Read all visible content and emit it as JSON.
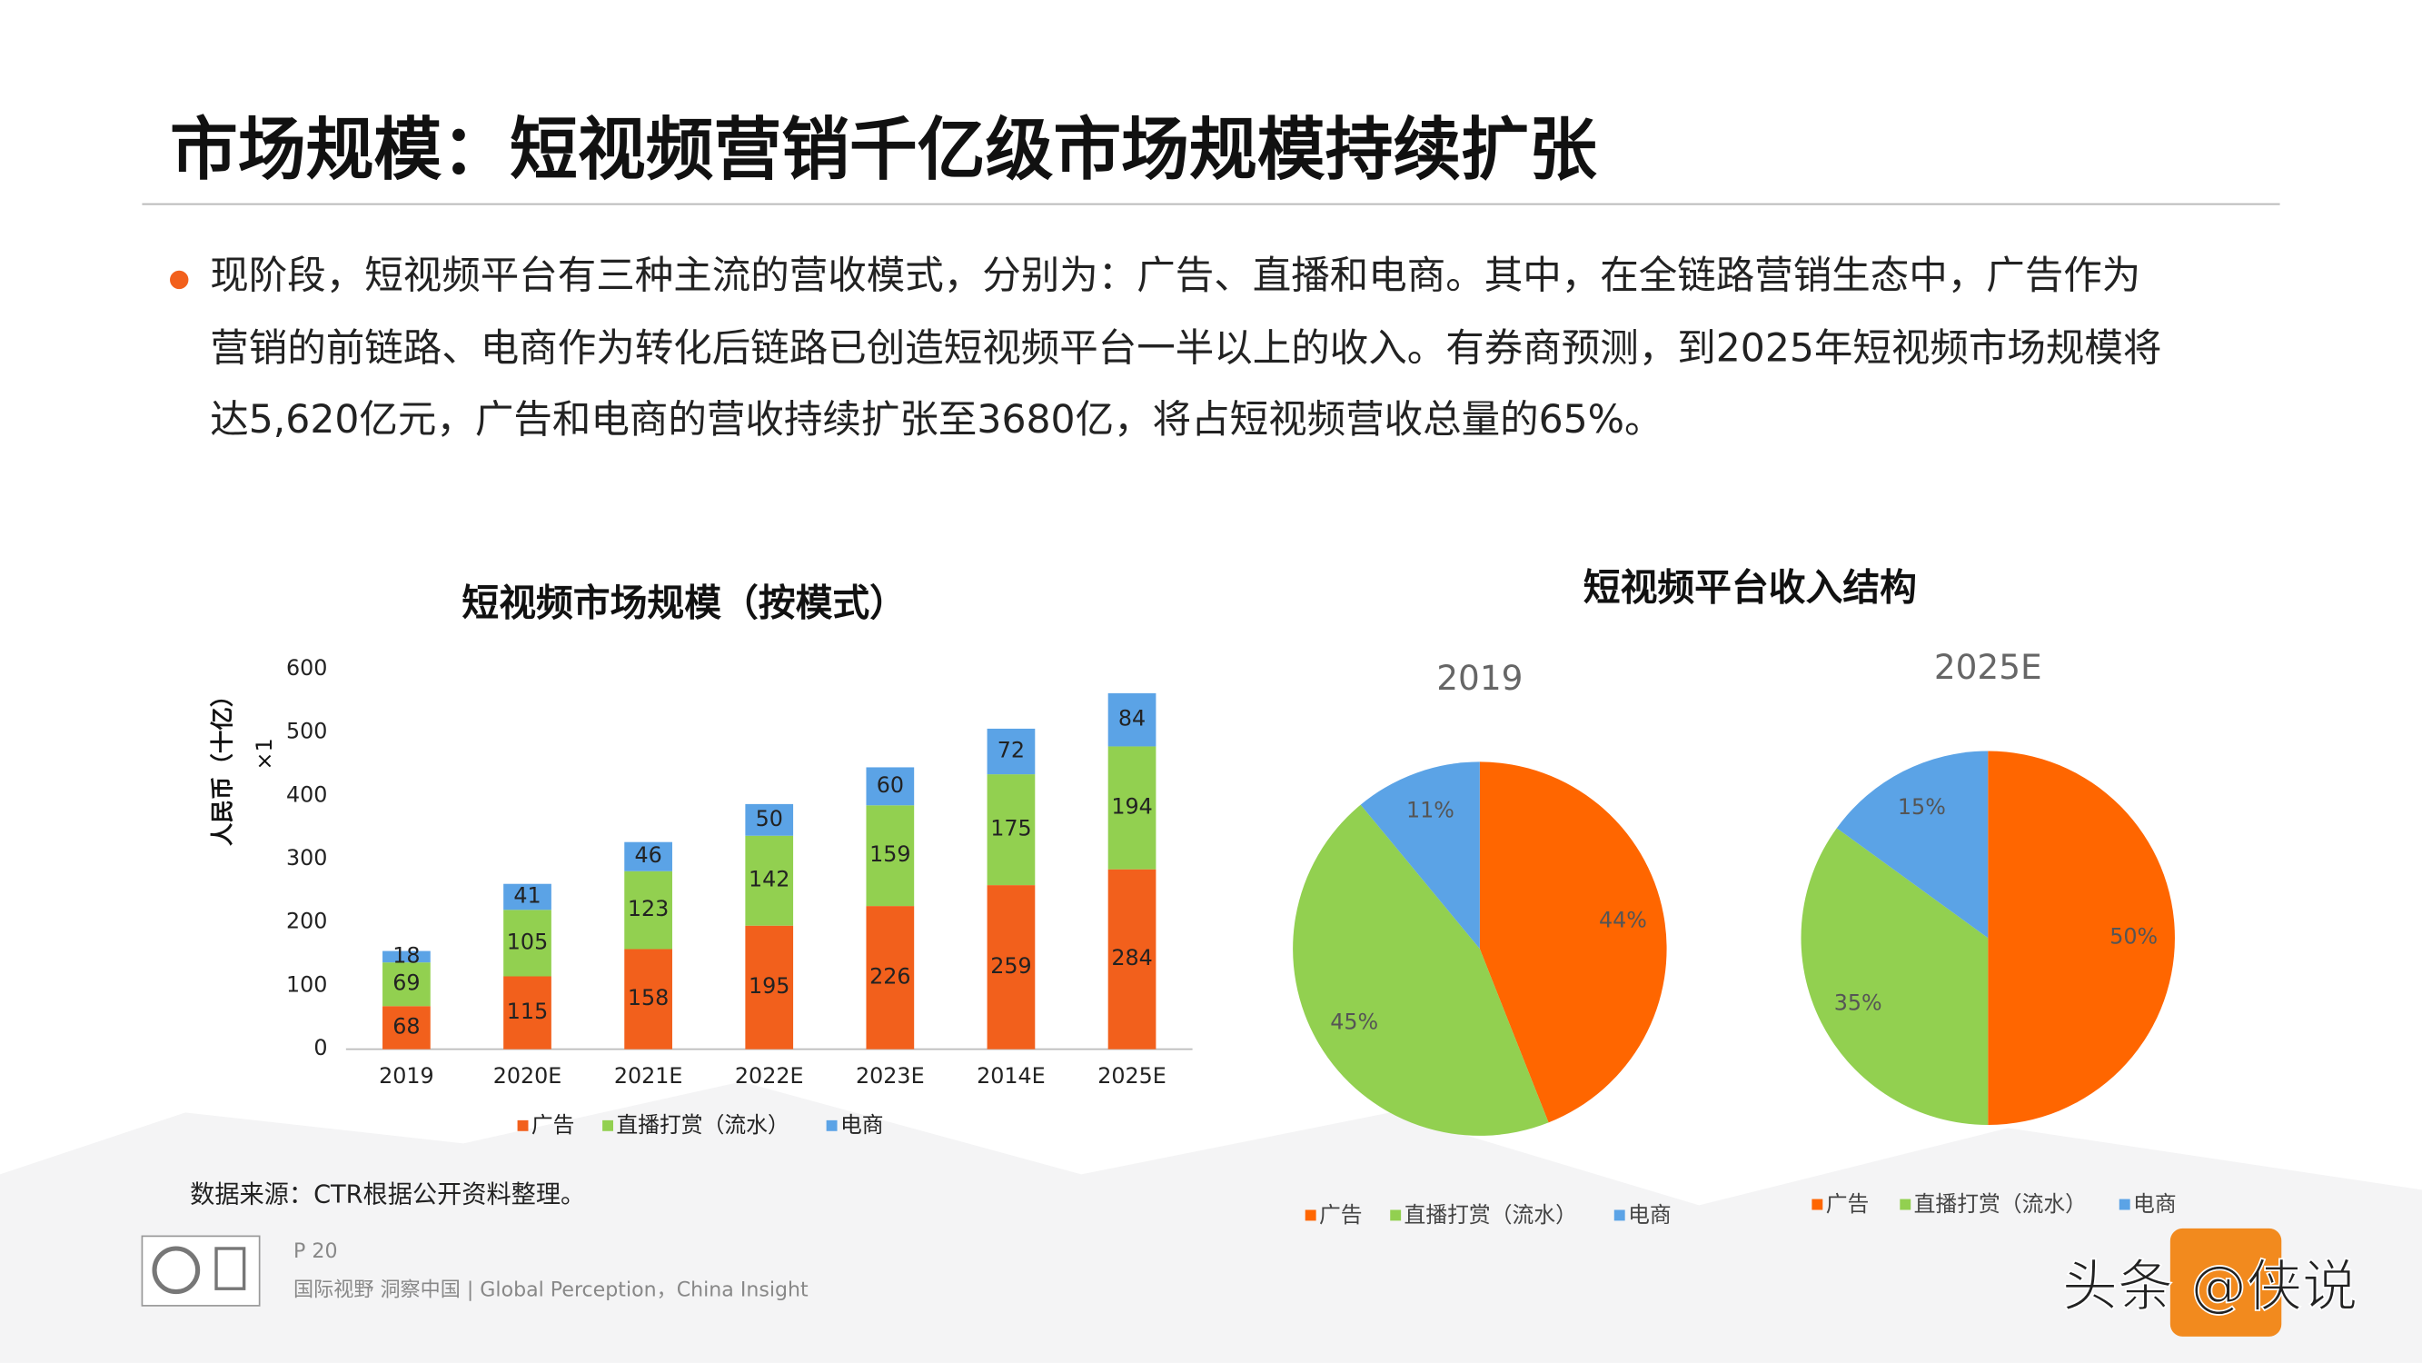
{
  "title": "市场规模：短视频营销千亿级市场规模持续扩张",
  "bullet": {
    "lines": [
      "现阶段，短视频平台有三种主流的营收模式，分别为：广告、直播和电商。其中，在全链路营销生态中，广告作为",
      "营销的前链路、电商作为转化后链路已创造短视频平台一半以上的收入。有券商预测，到2025年短视频市场规模将",
      "达5,620亿元，广告和电商的营收持续扩张至3680亿，将占短视频营收总量的65%。"
    ]
  },
  "pie_panel_title": "短视频平台收入结构",
  "chart_data": [
    {
      "type": "bar",
      "stacked": true,
      "title": "短视频市场规模（按模式）",
      "y_label": "人民币（十亿）",
      "y_unit": "×1",
      "categories": [
        "2019",
        "2020E",
        "2021E",
        "2022E",
        "2023E",
        "2014E",
        "2025E"
      ],
      "series": [
        {
          "name": "广告",
          "color": "#f2601c",
          "values": [
            68,
            115,
            158,
            195,
            226,
            259,
            284
          ]
        },
        {
          "name": "直播打赏（流水）",
          "color": "#92d050",
          "values": [
            69,
            105,
            123,
            142,
            159,
            175,
            194
          ]
        },
        {
          "name": "电商",
          "color": "#5ba3e6",
          "values": [
            18,
            41,
            46,
            50,
            60,
            72,
            84
          ]
        }
      ],
      "ylim": [
        0,
        600
      ],
      "yticks": [
        0,
        100,
        200,
        300,
        400,
        500,
        600
      ],
      "grid": false
    },
    {
      "type": "pie",
      "title": "2019",
      "categories": [
        "广告",
        "直播打赏（流水）",
        "电商"
      ],
      "values": [
        44,
        45,
        11
      ],
      "value_labels": [
        "44%",
        "45%",
        "11%"
      ],
      "colors": [
        "#ff6600",
        "#92d050",
        "#5ba3e6"
      ]
    },
    {
      "type": "pie",
      "title": "2025E",
      "categories": [
        "广告",
        "直播打赏（流水）",
        "电商"
      ],
      "values": [
        50,
        35,
        15
      ],
      "value_labels": [
        "50%",
        "35%",
        "15%"
      ],
      "colors": [
        "#ff6600",
        "#92d050",
        "#5ba3e6"
      ]
    }
  ],
  "source": "数据来源：CTR根据公开资料整理。",
  "footer": {
    "page": "P 20",
    "tagline": "国际视野  洞察中国 | Global Perception，China Insight",
    "watermark": "头条 @侠说"
  }
}
